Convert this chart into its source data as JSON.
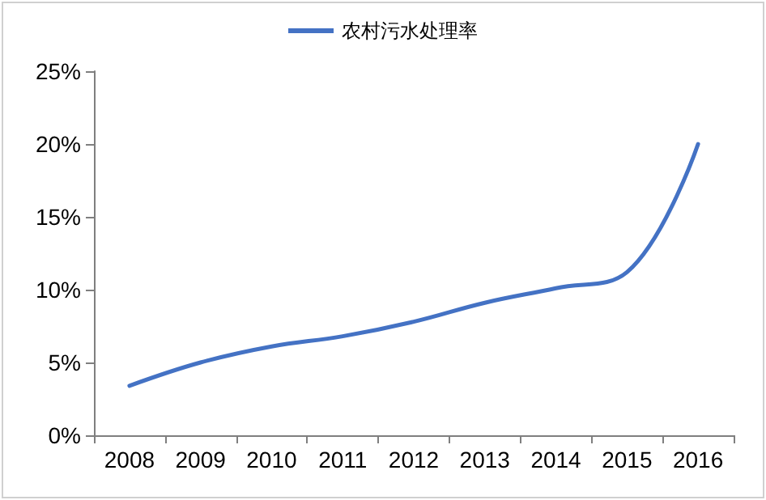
{
  "chart_data": {
    "type": "line",
    "categories": [
      "2008",
      "2009",
      "2010",
      "2011",
      "2012",
      "2013",
      "2014",
      "2015",
      "2016"
    ],
    "series": [
      {
        "name": "农村污水处理率",
        "color": "#4472c4",
        "values": [
          3.4,
          5.0,
          6.1,
          6.8,
          7.8,
          9.1,
          10.1,
          11.2,
          20.0
        ]
      }
    ],
    "ylim": [
      0,
      25
    ],
    "yticks": [
      {
        "value": 0,
        "label": "0%"
      },
      {
        "value": 5,
        "label": "5%"
      },
      {
        "value": 10,
        "label": "10%"
      },
      {
        "value": 15,
        "label": "15%"
      },
      {
        "value": 20,
        "label": "20%"
      },
      {
        "value": 25,
        "label": "25%"
      }
    ],
    "grid": false,
    "legend": "top",
    "marker": "none"
  }
}
